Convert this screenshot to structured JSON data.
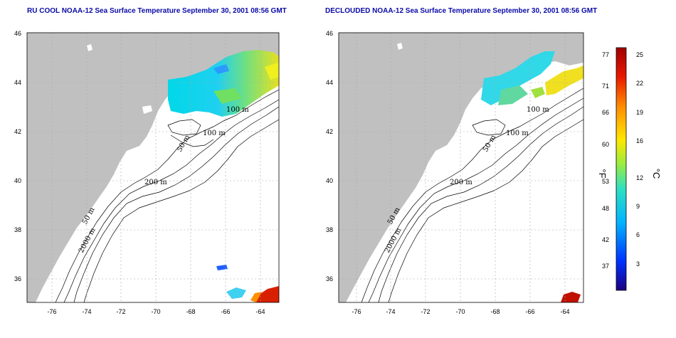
{
  "panels": [
    {
      "title": "RU COOL NOAA-12 Sea Surface Temperature September 30, 2001 08:56 GMT",
      "contour_labels": [
        "100 m",
        "100 m",
        "50 m",
        "200 m",
        "50 m",
        "2000 m"
      ]
    },
    {
      "title": "DECLOUDED NOAA-12 Sea Surface Temperature September 30, 2001 08:56 GMT",
      "contour_labels": [
        "100 m",
        "100 m",
        "50 m",
        "200 m",
        "50 m",
        "2000 m"
      ]
    }
  ],
  "axes": {
    "x_ticks": [
      "-76",
      "-74",
      "-72",
      "-70",
      "-68",
      "-66",
      "-64"
    ],
    "y_ticks": [
      "46",
      "44",
      "42",
      "40",
      "38",
      "36"
    ]
  },
  "colorbar": {
    "fahrenheit_ticks": [
      "77",
      "71",
      "66",
      "60",
      "53",
      "48",
      "42",
      "37"
    ],
    "celsius_ticks": [
      "25",
      "22",
      "19",
      "16",
      "12",
      "9",
      "6",
      "3"
    ],
    "fahrenheit_unit": "°F",
    "celsius_unit": "°C",
    "colors": [
      "#1a0080",
      "#0032ff",
      "#00b4ff",
      "#30e0c0",
      "#9aec40",
      "#ffe800",
      "#ff8a00",
      "#e81800",
      "#a00000"
    ]
  },
  "colors": {
    "land": "#c0c0c0",
    "title": "#0a0aa8",
    "grid": "#a8a8a8"
  }
}
